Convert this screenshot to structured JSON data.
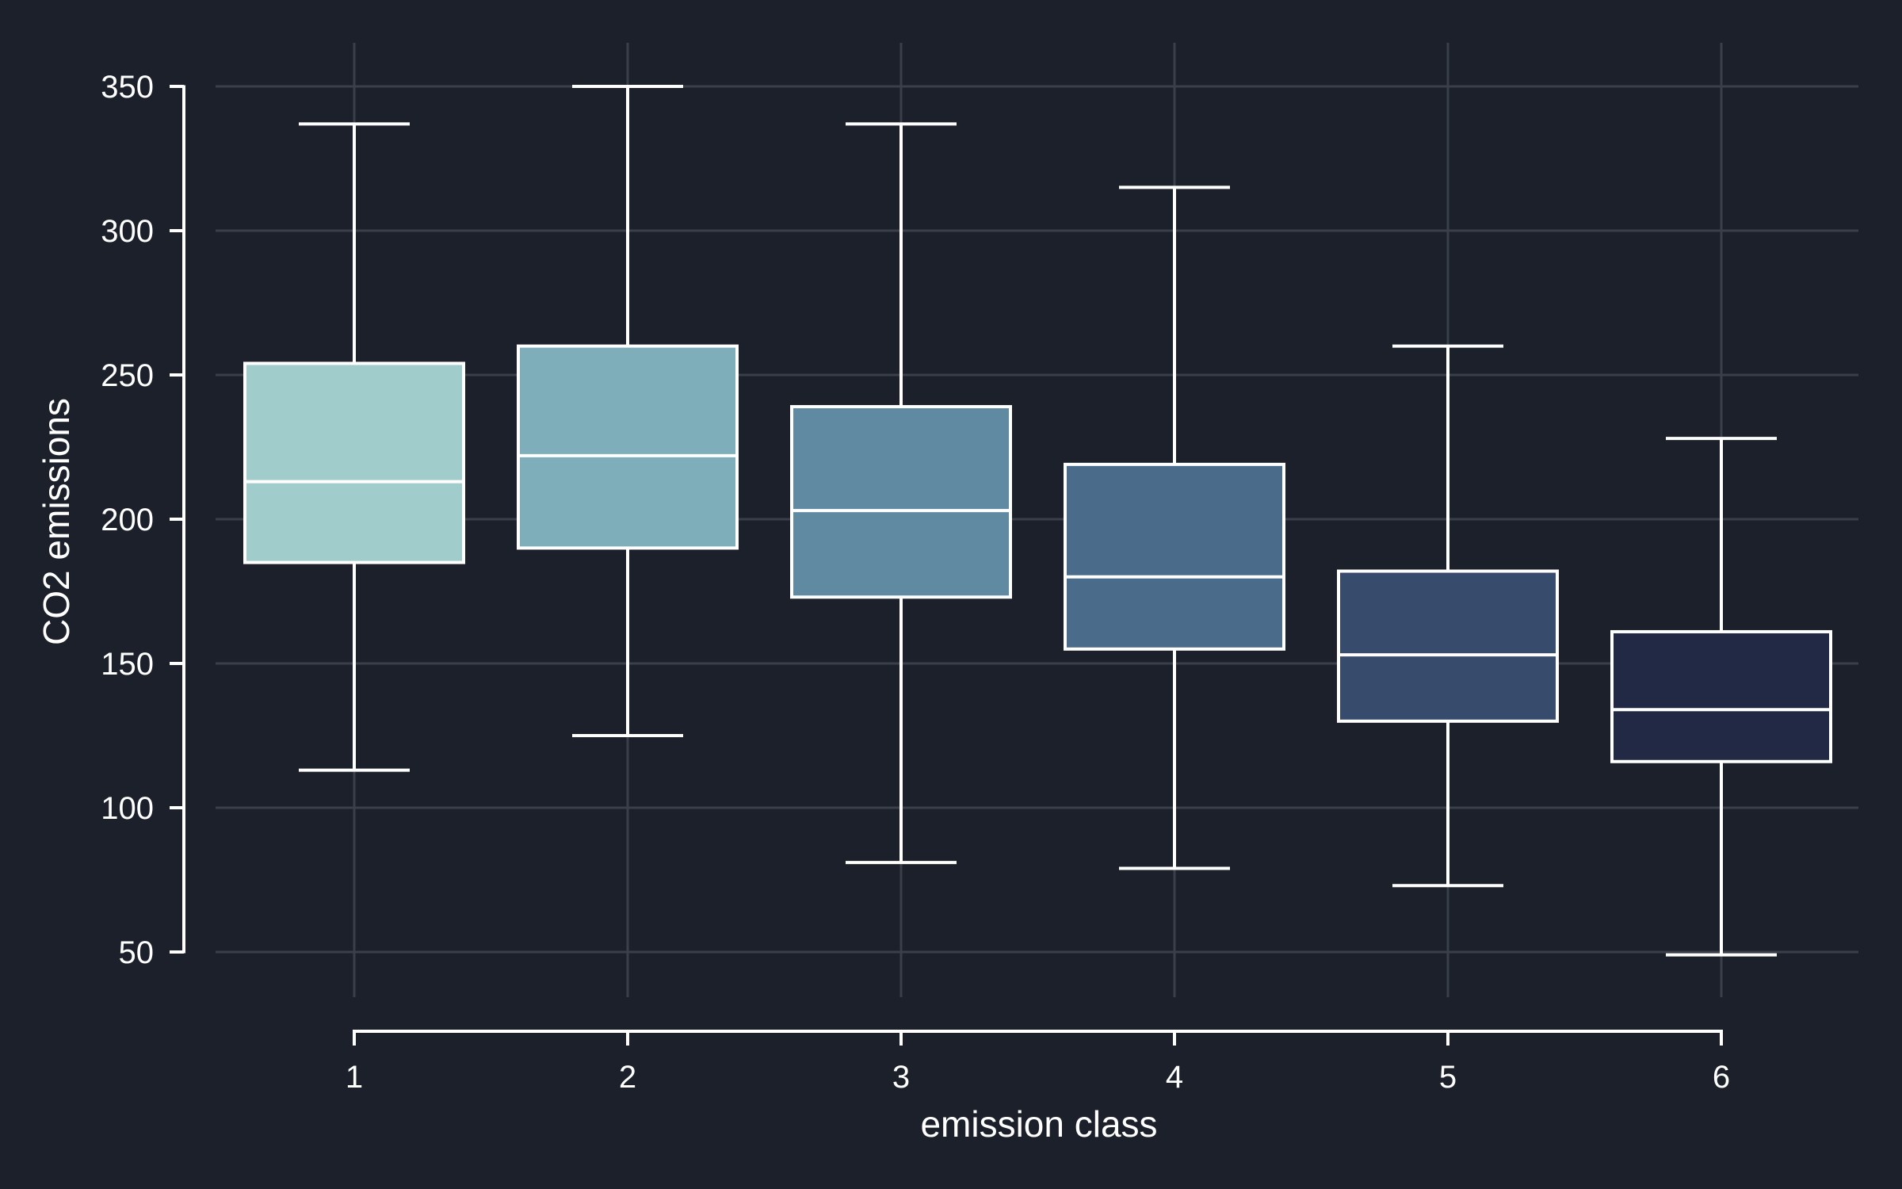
{
  "chart_data": {
    "type": "boxplot",
    "xlabel": "emission class",
    "ylabel": "CO2 emissions",
    "ylim": [
      50,
      350
    ],
    "yticks": [
      50,
      100,
      150,
      200,
      250,
      300,
      350
    ],
    "categories": [
      "1",
      "2",
      "3",
      "4",
      "5",
      "6"
    ],
    "grid": true,
    "legend": "none",
    "boxes": [
      {
        "category": "1",
        "whisker_low": 113,
        "q1": 185,
        "median": 213,
        "q3": 254,
        "whisker_high": 337,
        "color": "#a0cccb"
      },
      {
        "category": "2",
        "whisker_low": 125,
        "q1": 190,
        "median": 222,
        "q3": 260,
        "whisker_high": 350,
        "color": "#7eaeb9"
      },
      {
        "category": "3",
        "whisker_low": 81,
        "q1": 173,
        "median": 203,
        "q3": 239,
        "whisker_high": 337,
        "color": "#5f8aa1"
      },
      {
        "category": "4",
        "whisker_low": 79,
        "q1": 155,
        "median": 180,
        "q3": 219,
        "whisker_high": 315,
        "color": "#4a6b8a"
      },
      {
        "category": "5",
        "whisker_low": 73,
        "q1": 130,
        "median": 153,
        "q3": 182,
        "whisker_high": 260,
        "color": "#374b6c"
      },
      {
        "category": "6",
        "whisker_low": 49,
        "q1": 116,
        "median": 134,
        "q3": 161,
        "whisker_high": 228,
        "color": "#222944"
      }
    ],
    "colors": {
      "background": "#1b202b",
      "axis": "#ffffff",
      "grid": "#3a3f49",
      "box_edge": "#ffffff"
    }
  }
}
